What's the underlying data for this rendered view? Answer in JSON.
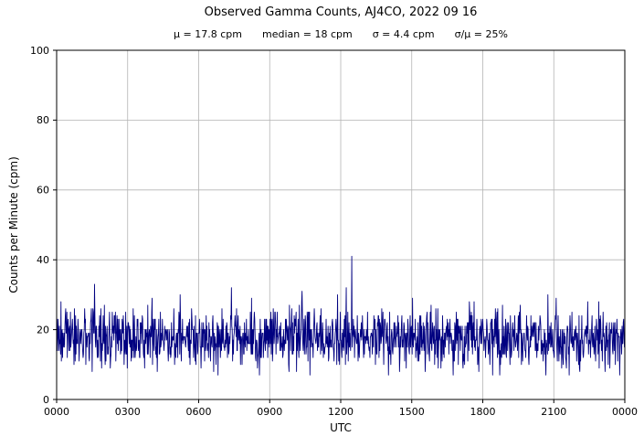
{
  "title": "Observed Gamma Counts, AJ4CO, 2022 09 16",
  "stats_line": {
    "mu": "μ = 17.8 cpm",
    "median": "median = 18 cpm",
    "sigma": "σ = 4.4 cpm",
    "sigma_over_mu": "σ/μ = 25%"
  },
  "chart_data": {
    "type": "line",
    "title": "Observed Gamma Counts, AJ4CO, 2022 09 16",
    "station": "AJ4CO",
    "date": "2022 09 16",
    "xlabel": "UTC",
    "ylabel": "Counts per Minute (cpm)",
    "xlim_minutes": [
      0,
      1440
    ],
    "ylim": [
      0,
      100
    ],
    "x_tick_minutes": [
      0,
      180,
      360,
      540,
      720,
      900,
      1080,
      1260,
      1440
    ],
    "x_tick_labels": [
      "0000",
      "0300",
      "0600",
      "0900",
      "1200",
      "1500",
      "1800",
      "2100",
      "0000"
    ],
    "y_ticks": [
      0,
      20,
      40,
      60,
      80,
      100
    ],
    "grid": true,
    "legend": "none",
    "line_color": "#000080",
    "grid_color": "#b4b4b4",
    "axis_color": "#000000",
    "background_color": "#ffffff",
    "series": {
      "name": "observed-gamma-counts-cpm",
      "n_points": 1441,
      "mean_cpm": 17.8,
      "median_cpm": 18,
      "sigma_cpm": 4.4,
      "typical_range_cpm": [
        7,
        33
      ],
      "spike": {
        "minute": 748,
        "value_cpm": 41
      },
      "seed": 20220916
    },
    "stats": {
      "mu_cpm": 17.8,
      "median_cpm": 18,
      "sigma_cpm": 4.4,
      "sigma_over_mu_pct": 25
    }
  }
}
